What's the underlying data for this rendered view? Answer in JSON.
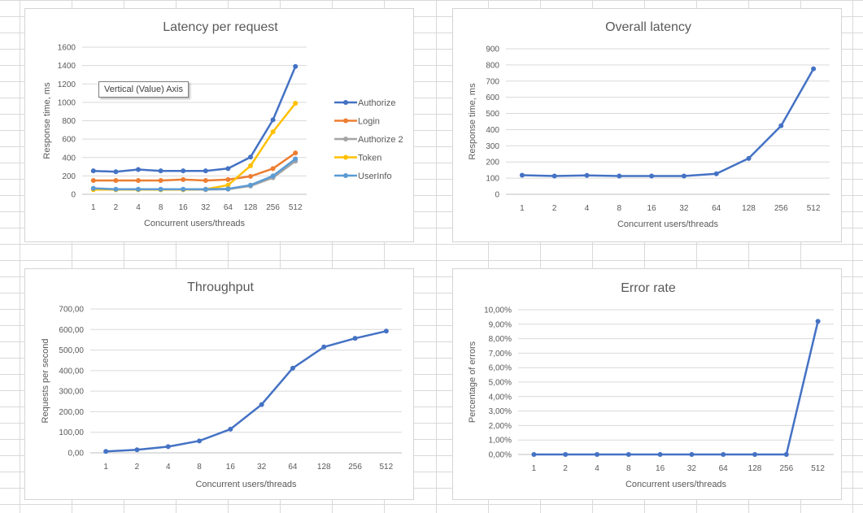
{
  "tooltip": "Vertical (Value) Axis",
  "chart_data": [
    {
      "id": "latency-per-request",
      "type": "line",
      "title": "Latency per request",
      "xlabel": "Concurrent users/threads",
      "ylabel": "Response time, ms",
      "categories": [
        "1",
        "2",
        "4",
        "8",
        "16",
        "32",
        "64",
        "128",
        "256",
        "512"
      ],
      "ylim": [
        0,
        1600
      ],
      "yticks": [
        "0",
        "200",
        "400",
        "600",
        "800",
        "1000",
        "1200",
        "1400",
        "1600"
      ],
      "grid": true,
      "legend": "right",
      "series": [
        {
          "name": "Authorize",
          "color": "#4472c4",
          "values": [
            255,
            245,
            270,
            255,
            255,
            255,
            280,
            405,
            810,
            1390
          ]
        },
        {
          "name": "Login",
          "color": "#ed7d31",
          "values": [
            150,
            150,
            150,
            150,
            160,
            150,
            160,
            195,
            280,
            450
          ]
        },
        {
          "name": "Authorize 2",
          "color": "#a5a5a5",
          "values": [
            60,
            50,
            50,
            50,
            50,
            50,
            55,
            90,
            180,
            360
          ]
        },
        {
          "name": "Token",
          "color": "#ffc000",
          "values": [
            50,
            50,
            50,
            50,
            50,
            55,
            100,
            310,
            680,
            990
          ]
        },
        {
          "name": "UserInfo",
          "color": "#5b9bd5",
          "values": [
            65,
            55,
            55,
            55,
            55,
            55,
            60,
            100,
            200,
            385
          ]
        }
      ]
    },
    {
      "id": "overall-latency",
      "type": "line",
      "title": "Overall latency",
      "xlabel": "Concurrent users/threads",
      "ylabel": "Response time, ms",
      "categories": [
        "1",
        "2",
        "4",
        "8",
        "16",
        "32",
        "64",
        "128",
        "256",
        "512"
      ],
      "ylim": [
        0,
        900
      ],
      "yticks": [
        "0",
        "100",
        "200",
        "300",
        "400",
        "500",
        "600",
        "700",
        "800",
        "900"
      ],
      "grid": true,
      "series": [
        {
          "color": "#4472c4",
          "values": [
            118,
            113,
            117,
            113,
            113,
            113,
            127,
            222,
            424,
            776
          ]
        }
      ]
    },
    {
      "id": "throughput",
      "type": "line",
      "title": "Throughput",
      "xlabel": "Concurrent users/threads",
      "ylabel": "Requests per second",
      "categories": [
        "1",
        "2",
        "4",
        "8",
        "16",
        "32",
        "64",
        "128",
        "256",
        "512"
      ],
      "ylim": [
        0,
        700
      ],
      "yticks": [
        "0,00",
        "100,00",
        "200,00",
        "300,00",
        "400,00",
        "500,00",
        "600,00",
        "700,00"
      ],
      "grid": true,
      "series": [
        {
          "color": "#4472c4",
          "values": [
            7,
            15,
            30,
            58,
            115,
            235,
            412,
            515,
            557,
            592
          ]
        }
      ]
    },
    {
      "id": "error-rate",
      "type": "line",
      "title": "Error rate",
      "xlabel": "Concurrent users/threads",
      "ylabel": "Percentage of errors",
      "categories": [
        "1",
        "2",
        "4",
        "8",
        "16",
        "32",
        "64",
        "128",
        "256",
        "512"
      ],
      "ylim": [
        0,
        10
      ],
      "yticks": [
        "0,00%",
        "1,00%",
        "2,00%",
        "3,00%",
        "4,00%",
        "5,00%",
        "6,00%",
        "7,00%",
        "8,00%",
        "9,00%",
        "10,00%"
      ],
      "grid": true,
      "series": [
        {
          "color": "#4472c4",
          "values": [
            0,
            0,
            0,
            0,
            0,
            0,
            0,
            0,
            0,
            9.2
          ]
        }
      ]
    }
  ]
}
